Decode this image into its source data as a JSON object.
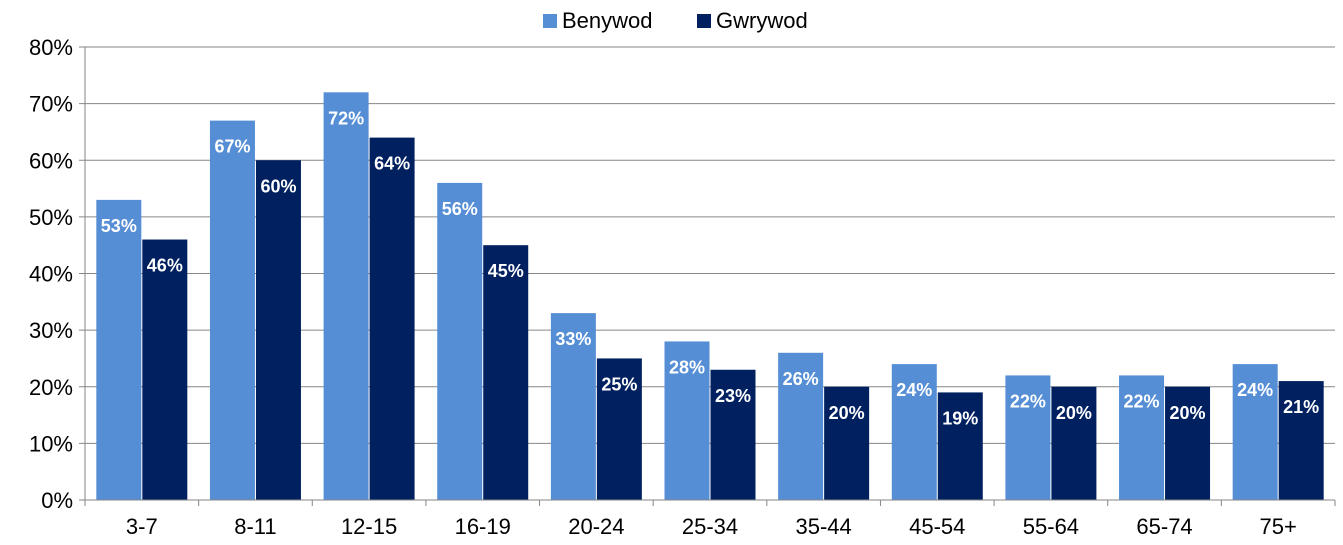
{
  "chart_data": {
    "type": "bar",
    "title": "",
    "xlabel": "",
    "ylabel": "",
    "categories": [
      "3-7",
      "8-11",
      "12-15",
      "16-19",
      "20-24",
      "25-34",
      "35-44",
      "45-54",
      "55-64",
      "65-74",
      "75+"
    ],
    "series": [
      {
        "name": "Benywod",
        "color": "#558ED5",
        "values": [
          53,
          67,
          72,
          56,
          33,
          28,
          26,
          24,
          22,
          22,
          24
        ],
        "labels": [
          "53%",
          "67%",
          "72%",
          "56%",
          "33%",
          "28%",
          "26%",
          "24%",
          "22%",
          "22%",
          "24%"
        ]
      },
      {
        "name": "Gwrywod",
        "color": "#002060",
        "values": [
          46,
          60,
          64,
          45,
          25,
          23,
          20,
          19,
          20,
          20,
          21
        ],
        "labels": [
          "46%",
          "60%",
          "64%",
          "45%",
          "25%",
          "23%",
          "20%",
          "19%",
          "20%",
          "20%",
          "21%"
        ]
      }
    ],
    "ylim": [
      0,
      80
    ],
    "yticks": [
      {
        "value": 0,
        "label": "0%"
      },
      {
        "value": 10,
        "label": "10%"
      },
      {
        "value": 20,
        "label": "20%"
      },
      {
        "value": 30,
        "label": "30%"
      },
      {
        "value": 40,
        "label": "40%"
      },
      {
        "value": 50,
        "label": "50%"
      },
      {
        "value": 60,
        "label": "60%"
      },
      {
        "value": 70,
        "label": "70%"
      },
      {
        "value": 80,
        "label": "80%"
      }
    ],
    "grid": true,
    "gridColor": "#868686",
    "legend_position": "top-center"
  }
}
